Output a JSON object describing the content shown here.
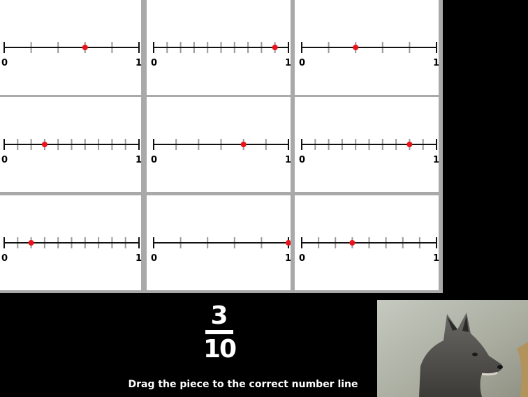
{
  "number_lines": [
    {
      "divisions": 5,
      "point": 3,
      "start_label": "0",
      "end_label": "1"
    },
    {
      "divisions": 10,
      "point": 9,
      "start_label": "0",
      "end_label": "1"
    },
    {
      "divisions": 5,
      "point": 2,
      "start_label": "0",
      "end_label": "1"
    },
    {
      "divisions": 10,
      "point": 3,
      "start_label": "0",
      "end_label": "1"
    },
    {
      "divisions": 6,
      "point": 4,
      "start_label": "0",
      "end_label": "1"
    },
    {
      "divisions": 10,
      "point": 8,
      "start_label": "0",
      "end_label": "1"
    },
    {
      "divisions": 10,
      "point": 2,
      "start_label": "0",
      "end_label": "1"
    },
    {
      "divisions": 5,
      "point": 5,
      "start_label": "0",
      "end_label": "1"
    },
    {
      "divisions": 8,
      "point": 3,
      "start_label": "0",
      "end_label": "1"
    }
  ],
  "piece": {
    "numerator": "3",
    "denominator": "10"
  },
  "instruction": "Drag the piece to the correct number line",
  "colors": {
    "point": "#e8141b",
    "tick": "#999999",
    "line": "#111111",
    "grid": "#a9a9a9",
    "background": "#000000"
  },
  "wolf_image": {
    "icon": "wolf-photo"
  }
}
